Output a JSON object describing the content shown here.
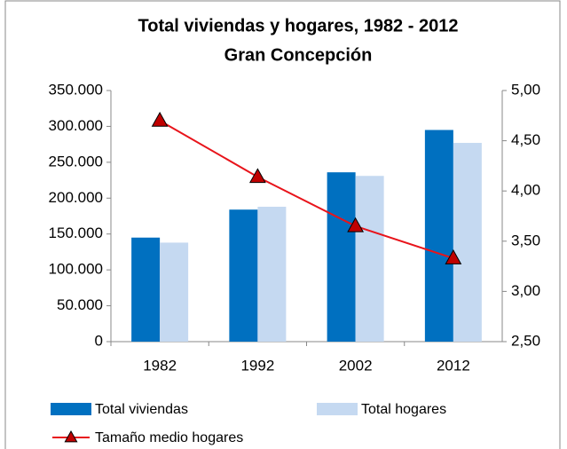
{
  "chart_data": {
    "type": "bar_line",
    "title": "Total viviendas y hogares, 1982 - 2012",
    "subtitle": "Gran Concepción",
    "categories": [
      "1982",
      "1992",
      "2002",
      "2012"
    ],
    "series": [
      {
        "name": "Total viviendas",
        "color": "#0070c0",
        "type": "bar",
        "values": [
          145000,
          184000,
          236000,
          295000
        ]
      },
      {
        "name": "Total hogares",
        "color": "#c5d9f1",
        "type": "bar",
        "values": [
          138000,
          188000,
          231000,
          277000
        ]
      },
      {
        "name": "Tamaño medio hogares",
        "color": "#e8141b",
        "marker_color": "#c00000",
        "type": "line",
        "axis": "y2",
        "values": [
          4.7,
          4.14,
          3.65,
          3.33
        ]
      }
    ],
    "ylim": [
      0,
      350000
    ],
    "yticks": [
      0,
      {
        "value": 50000,
        "label": "50.000"
      },
      {
        "value": 100000,
        "label": "100.000"
      },
      {
        "value": 150000,
        "label": "150.000"
      },
      {
        "value": 200000,
        "label": "200.000"
      },
      {
        "value": 250000,
        "label": "250.000"
      },
      {
        "value": 300000,
        "label": "300.000"
      },
      {
        "value": 350000,
        "label": "350.000"
      }
    ],
    "y2lim": [
      2.5,
      5.0
    ],
    "y2ticks": [
      {
        "value": 2.5,
        "label": "2,50"
      },
      {
        "value": 3.0,
        "label": "3,00"
      },
      {
        "value": 3.5,
        "label": "3,50"
      },
      {
        "value": 4.0,
        "label": "4,00"
      },
      {
        "value": 4.5,
        "label": "4,50"
      },
      {
        "value": 5.0,
        "label": "5,00"
      }
    ],
    "grid": false,
    "legend": "bottom"
  }
}
